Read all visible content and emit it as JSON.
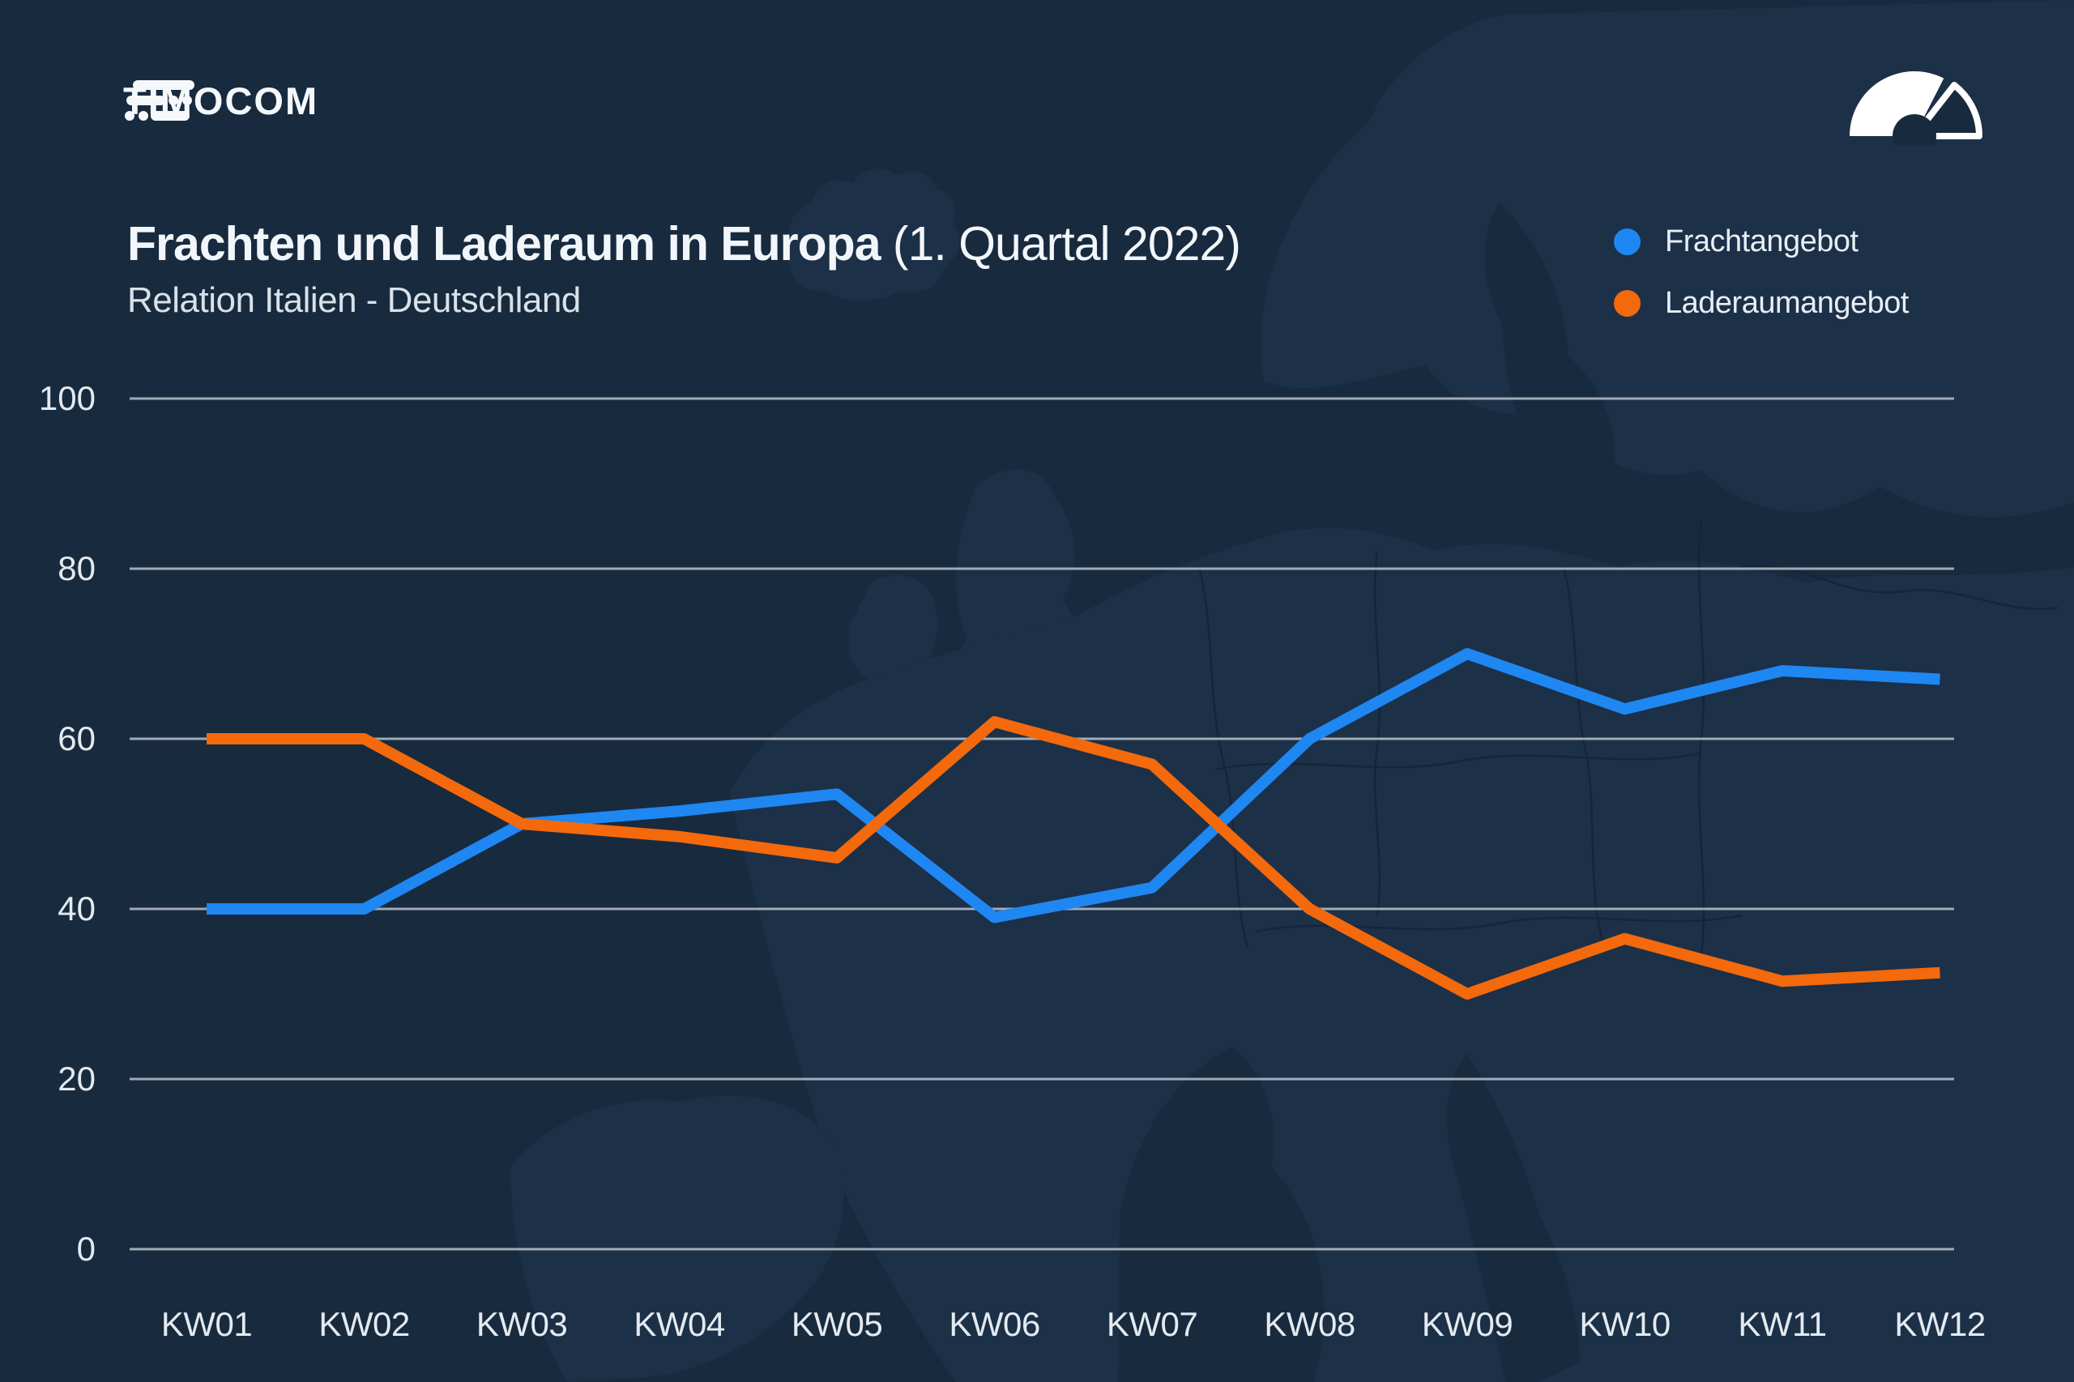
{
  "header": {
    "logo_text": "TIMOCOM",
    "icons": {
      "logo": "road-lines-icon",
      "top_right": "speedometer-gauge-icon"
    }
  },
  "title": {
    "main": "Frachten und Laderaum in Europa",
    "period": "(1. Quartal 2022)",
    "subtitle": "Relation Italien - Deutschland"
  },
  "legend": {
    "items": [
      {
        "label": "Frachtangebot",
        "color": "#1E87F2"
      },
      {
        "label": "Laderaumangebot",
        "color": "#F3690C"
      }
    ]
  },
  "chart_data": {
    "type": "line",
    "title": "Frachten und Laderaum in Europa (1. Quartal 2022)",
    "subtitle": "Relation Italien - Deutschland",
    "categories": [
      "KW01",
      "KW02",
      "KW03",
      "KW04",
      "KW05",
      "KW06",
      "KW07",
      "KW08",
      "KW09",
      "KW10",
      "KW11",
      "KW12"
    ],
    "series": [
      {
        "name": "Frachtangebot",
        "color": "#1E87F2",
        "values": [
          40,
          40,
          50,
          51.5,
          53.5,
          39,
          42.5,
          60,
          70,
          63.5,
          68,
          67
        ]
      },
      {
        "name": "Laderaumangebot",
        "color": "#F3690C",
        "values": [
          60,
          60,
          50,
          48.5,
          46,
          62,
          57,
          40,
          30,
          36.5,
          31.5,
          32.5
        ]
      }
    ],
    "xlabel": "",
    "ylabel": "",
    "ylim": [
      0,
      100
    ],
    "yticks": [
      0,
      20,
      40,
      60,
      80,
      100
    ],
    "grid": true,
    "legend_position": "top-right"
  },
  "theme": {
    "background": "#182A3E",
    "map_fill": "#1C3048",
    "map_border": "#14253A",
    "grid_color": "#C3CBD4",
    "text_color": "#E8EEF4",
    "accent_blue": "#1E87F2",
    "accent_orange": "#F3690C"
  }
}
